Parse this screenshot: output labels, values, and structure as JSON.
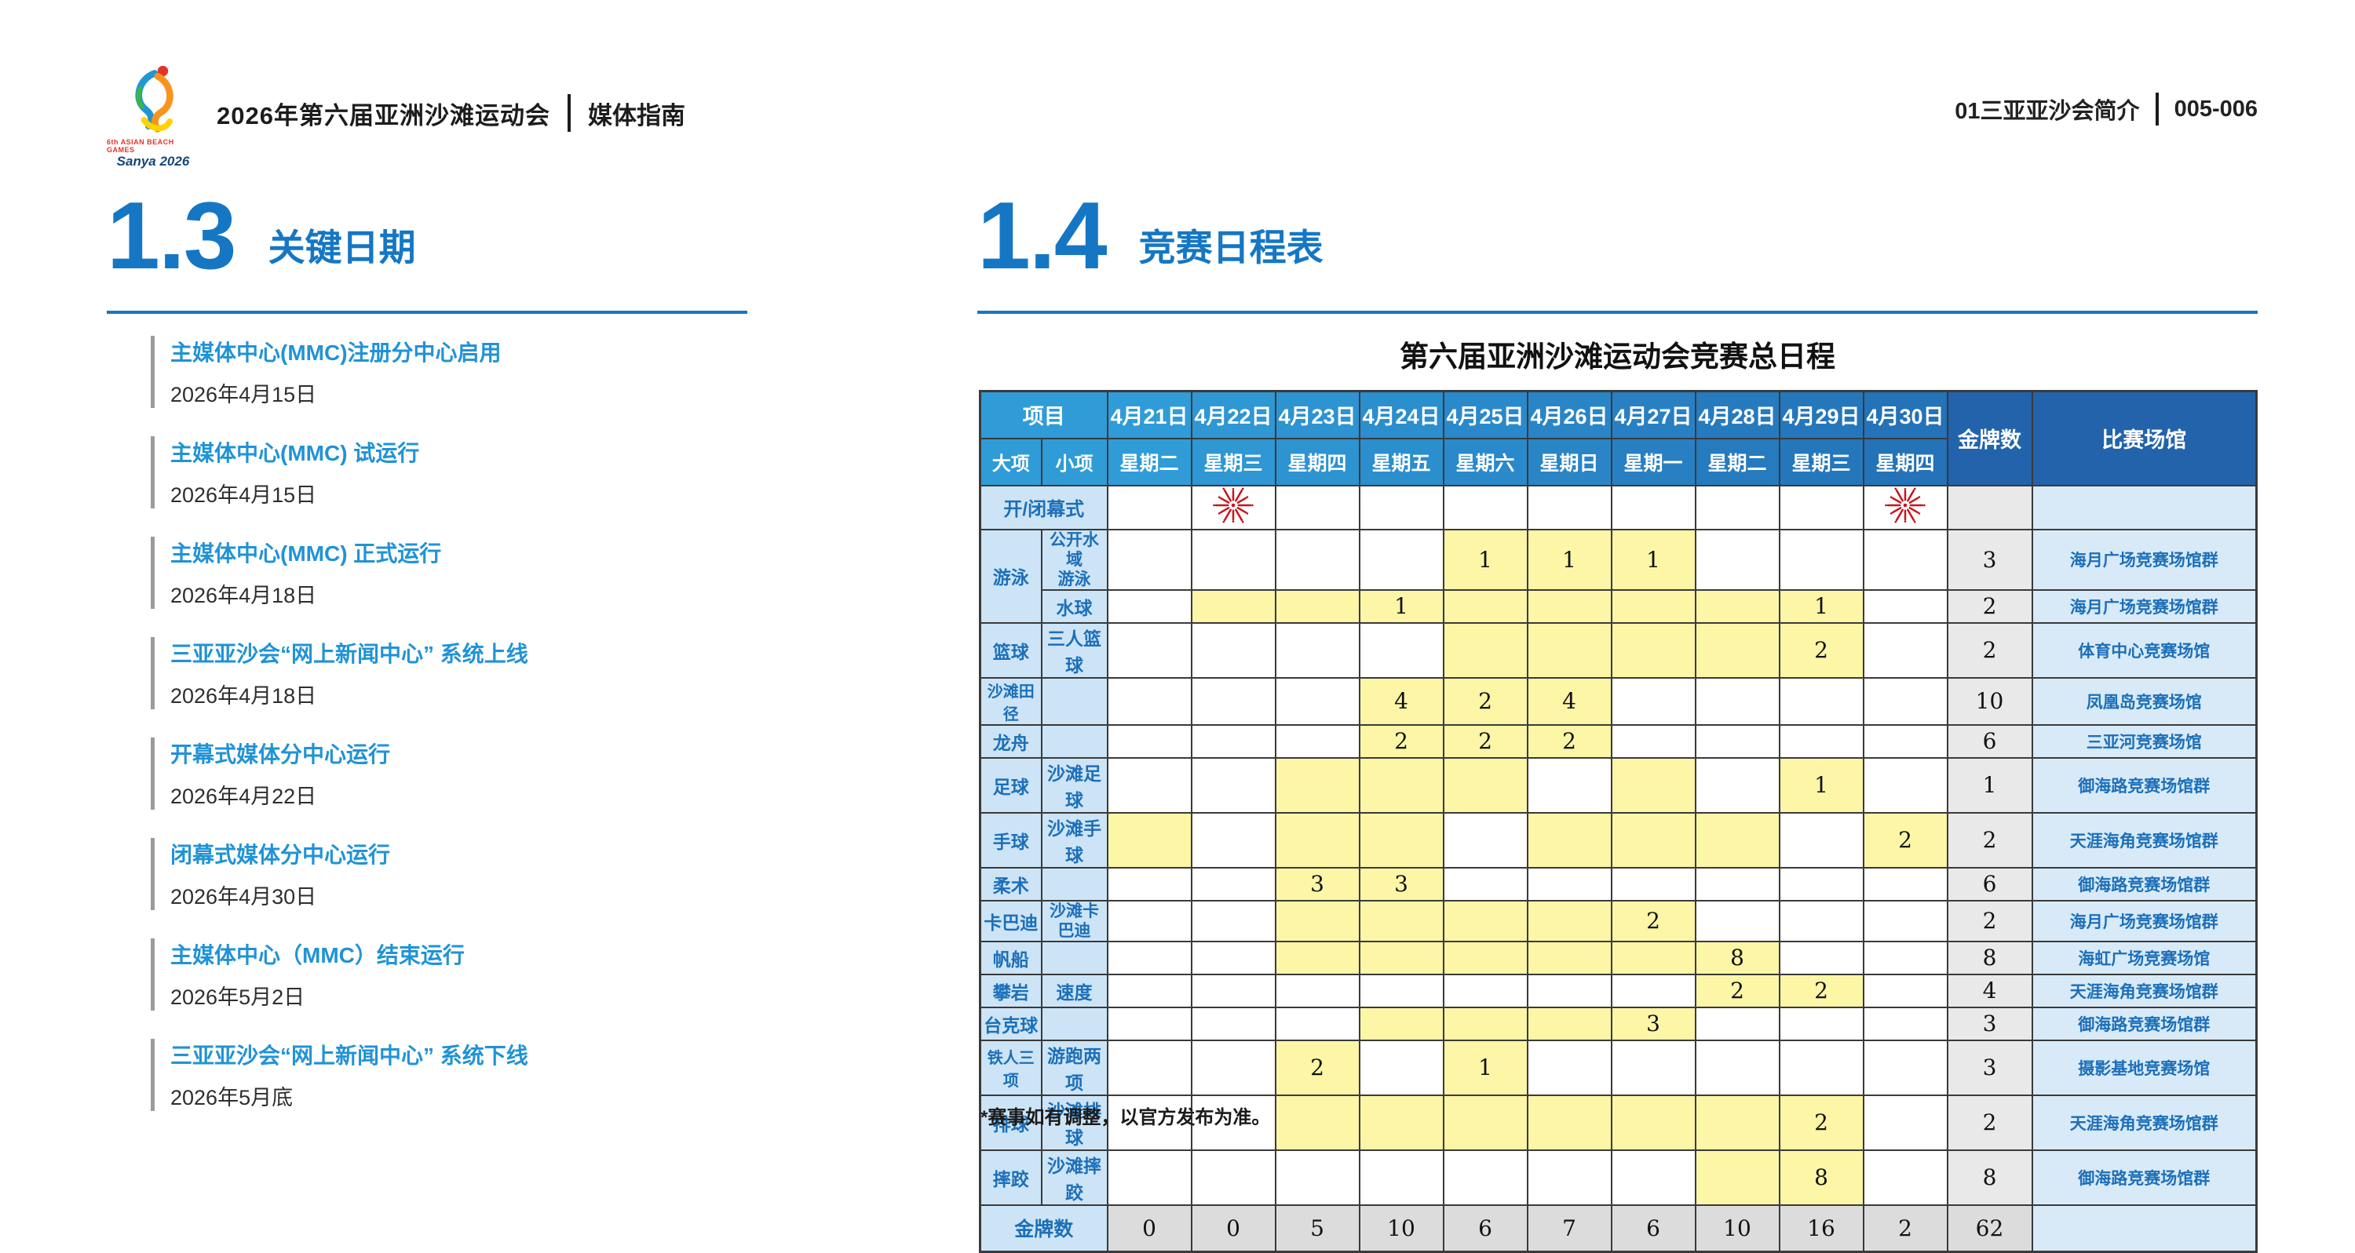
{
  "page_header": {
    "logo_text": "Sanya 2026",
    "logo_tagline": "6th ASIAN BEACH GAMES",
    "title": "2026年第六届亚洲沙滩运动会",
    "subtitle": "媒体指南",
    "right_section": "01三亚亚沙会简介",
    "right_pages": "005-006"
  },
  "section_left": {
    "number": "1.3",
    "title": "关键日期",
    "items": [
      {
        "label": "主媒体中心(MMC)注册分中心启用",
        "date": "2026年4月15日"
      },
      {
        "label": "主媒体中心(MMC) 试运行",
        "date": "2026年4月15日"
      },
      {
        "label": "主媒体中心(MMC) 正式运行",
        "date": "2026年4月18日"
      },
      {
        "label": "三亚亚沙会“网上新闻中心” 系统上线",
        "date": "2026年4月18日"
      },
      {
        "label": "开幕式媒体分中心运行",
        "date": "2026年4月22日"
      },
      {
        "label": "闭幕式媒体分中心运行",
        "date": "2026年4月30日"
      },
      {
        "label": "主媒体中心（MMC）结束运行",
        "date": "2026年5月2日"
      },
      {
        "label": "三亚亚沙会“网上新闻中心” 系统下线",
        "date": "2026年5月底"
      }
    ]
  },
  "section_right": {
    "number": "1.4",
    "title": "竞赛日程表",
    "table_title": "第六届亚洲沙滩运动会竞赛总日程",
    "footnote": "*赛事如有调整，以官方发布为准。"
  },
  "colors": {
    "accent_blue": "#1577c4",
    "item_title_blue": "#2093d6",
    "header_blue_start": "#2f9cd8",
    "header_blue_end": "#2472b8",
    "header_dark_blue": "#2263ab",
    "label_light_blue": "#cde4f6",
    "venue_light_blue": "#d8eaf8",
    "highlight_yellow": "#fcf6a6",
    "gold_gray": "#e9e9e9",
    "footer_gray": "#dcdcdc",
    "border_dark": "#3a3a3a",
    "firework_red": "#c4161c"
  },
  "schedule_table": {
    "header": {
      "project": "项目",
      "sport_major": "大项",
      "sport_minor": "小项",
      "dates": [
        "4月21日",
        "4月22日",
        "4月23日",
        "4月24日",
        "4月25日",
        "4月26日",
        "4月27日",
        "4月28日",
        "4月29日",
        "4月30日"
      ],
      "weekdays": [
        "星期二",
        "星期三",
        "星期四",
        "星期五",
        "星期六",
        "星期日",
        "星期一",
        "星期二",
        "星期三",
        "星期四"
      ],
      "gold_label": "金牌数",
      "venue_label": "比赛场馆"
    },
    "ceremony_row": {
      "label": "开/闭幕式",
      "fireworks_days": [
        1,
        9
      ]
    },
    "rows": [
      {
        "major": "游泳",
        "major_rowspan": 2,
        "minor": "公开水域游泳",
        "minor_two_line": true,
        "values": [
          "",
          "",
          "",
          "",
          "1",
          "1",
          "1",
          "",
          "",
          ""
        ],
        "yellow": [
          0,
          0,
          0,
          0,
          1,
          1,
          1,
          0,
          0,
          0
        ],
        "gold": "3",
        "venue": "海月广场竞赛场馆群"
      },
      {
        "major": null,
        "minor": "水球",
        "values": [
          "",
          "",
          "",
          "1",
          "",
          "",
          "",
          "",
          "1",
          ""
        ],
        "yellow": [
          0,
          1,
          1,
          1,
          1,
          1,
          1,
          1,
          1,
          0
        ],
        "gold": "2",
        "venue": "海月广场竞赛场馆群"
      },
      {
        "major": "篮球",
        "minor": "三人篮球",
        "values": [
          "",
          "",
          "",
          "",
          "",
          "",
          "",
          "",
          "2",
          ""
        ],
        "yellow": [
          0,
          0,
          0,
          0,
          1,
          1,
          1,
          1,
          1,
          0
        ],
        "gold": "2",
        "venue": "体育中心竞赛场馆"
      },
      {
        "major": "沙滩田径",
        "minor": "",
        "values": [
          "",
          "",
          "",
          "4",
          "2",
          "4",
          "",
          "",
          "",
          ""
        ],
        "yellow": [
          0,
          0,
          0,
          1,
          1,
          1,
          0,
          0,
          0,
          0
        ],
        "gold": "10",
        "venue": "凤凰岛竞赛场馆"
      },
      {
        "major": "龙舟",
        "minor": "",
        "values": [
          "",
          "",
          "",
          "2",
          "2",
          "2",
          "",
          "",
          "",
          ""
        ],
        "yellow": [
          0,
          0,
          0,
          1,
          1,
          1,
          0,
          0,
          0,
          0
        ],
        "gold": "6",
        "venue": "三亚河竞赛场馆"
      },
      {
        "major": "足球",
        "minor": "沙滩足球",
        "values": [
          "",
          "",
          "",
          "",
          "",
          "",
          "",
          "",
          "1",
          ""
        ],
        "yellow": [
          0,
          0,
          1,
          1,
          1,
          0,
          1,
          0,
          1,
          0
        ],
        "gold": "1",
        "venue": "御海路竞赛场馆群"
      },
      {
        "major": "手球",
        "minor": "沙滩手球",
        "values": [
          "",
          "",
          "",
          "",
          "",
          "",
          "",
          "",
          "",
          "2"
        ],
        "yellow": [
          1,
          0,
          1,
          1,
          0,
          1,
          1,
          1,
          0,
          1
        ],
        "gold": "2",
        "venue": "天涯海角竞赛场馆群"
      },
      {
        "major": "柔术",
        "minor": "",
        "values": [
          "",
          "",
          "3",
          "3",
          "",
          "",
          "",
          "",
          "",
          ""
        ],
        "yellow": [
          0,
          0,
          1,
          1,
          0,
          0,
          0,
          0,
          0,
          0
        ],
        "gold": "6",
        "venue": "御海路竞赛场馆群"
      },
      {
        "major": "卡巴迪",
        "minor": "沙滩卡巴迪",
        "minor_small": true,
        "values": [
          "",
          "",
          "",
          "",
          "",
          "",
          "2",
          "",
          "",
          ""
        ],
        "yellow": [
          0,
          0,
          1,
          1,
          1,
          1,
          1,
          0,
          0,
          0
        ],
        "gold": "2",
        "venue": "海月广场竞赛场馆群"
      },
      {
        "major": "帆船",
        "minor": "",
        "values": [
          "",
          "",
          "",
          "",
          "",
          "",
          "",
          "8",
          "",
          ""
        ],
        "yellow": [
          0,
          0,
          1,
          1,
          1,
          1,
          1,
          1,
          0,
          0
        ],
        "gold": "8",
        "venue": "海虹广场竞赛场馆"
      },
      {
        "major": "攀岩",
        "minor": "速度",
        "values": [
          "",
          "",
          "",
          "",
          "",
          "",
          "",
          "2",
          "2",
          ""
        ],
        "yellow": [
          0,
          0,
          0,
          0,
          0,
          0,
          0,
          1,
          1,
          0
        ],
        "gold": "4",
        "venue": "天涯海角竞赛场馆群"
      },
      {
        "major": "台克球",
        "minor": "",
        "values": [
          "",
          "",
          "",
          "",
          "",
          "",
          "3",
          "",
          "",
          ""
        ],
        "yellow": [
          0,
          0,
          0,
          1,
          1,
          1,
          1,
          0,
          0,
          0
        ],
        "gold": "3",
        "venue": "御海路竞赛场馆群"
      },
      {
        "major": "铁人三项",
        "minor": "游跑两项",
        "values": [
          "",
          "",
          "2",
          "",
          "1",
          "",
          "",
          "",
          "",
          ""
        ],
        "yellow": [
          0,
          0,
          1,
          0,
          1,
          0,
          0,
          0,
          0,
          0
        ],
        "gold": "3",
        "venue": "摄影基地竞赛场馆"
      },
      {
        "major": "排球",
        "minor": "沙滩排球",
        "values": [
          "",
          "",
          "",
          "",
          "",
          "",
          "",
          "",
          "2",
          ""
        ],
        "yellow": [
          0,
          0,
          1,
          1,
          1,
          1,
          1,
          1,
          1,
          0
        ],
        "gold": "2",
        "venue": "天涯海角竞赛场馆群"
      },
      {
        "major": "摔跤",
        "minor": "沙滩摔跤",
        "values": [
          "",
          "",
          "",
          "",
          "",
          "",
          "",
          "",
          "8",
          ""
        ],
        "yellow": [
          0,
          0,
          0,
          0,
          0,
          0,
          0,
          1,
          1,
          0
        ],
        "gold": "8",
        "venue": "御海路竞赛场馆群"
      }
    ],
    "footer": {
      "label": "金牌数",
      "values": [
        "0",
        "0",
        "5",
        "10",
        "6",
        "7",
        "6",
        "10",
        "16",
        "2"
      ],
      "total": "62"
    }
  }
}
